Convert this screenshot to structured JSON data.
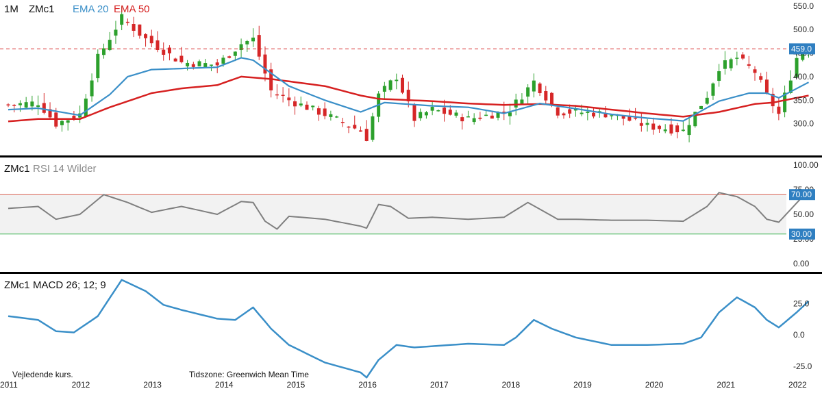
{
  "header": {
    "interval": "1M",
    "symbol": "ZMc1",
    "ema20_label": "EMA 20",
    "ema50_label": "EMA 50"
  },
  "colors": {
    "up": "#2ca02c",
    "down": "#d62728",
    "ema20": "#3a8fc8",
    "ema50": "#d62020",
    "rsi_line": "#7f7f7f",
    "rsi_band": "#f2f2f2",
    "rsi_upper_line": "#d65a4a",
    "rsi_lower_line": "#37b24d",
    "macd_line": "#3a8fc8",
    "tag_bg": "#2f7fc1",
    "tag_text": "#ffffff",
    "divider": "#000000"
  },
  "footer": {
    "note": "Vejledende kurs.",
    "timezone": "Tidszone: Greenwich Mean Time"
  },
  "chart_data": [
    {
      "type": "candlestick",
      "title": "ZMc1",
      "x_start": "2011-01",
      "x_end": "2022-03",
      "ylim": [
        240,
        570
      ],
      "yticks": [
        "550.0",
        "500.0",
        "450.0",
        "400.0",
        "350.0",
        "300.0"
      ],
      "ytick_values": [
        550,
        500,
        450,
        400,
        350,
        300
      ],
      "last_price": 459,
      "last_price_label": "459.0",
      "xticks": [
        "2011",
        "2012",
        "2013",
        "2014",
        "2015",
        "2016",
        "2017",
        "2018",
        "2019",
        "2020",
        "2021",
        "2022"
      ],
      "keypoints": [
        [
          "2011-01",
          340
        ],
        [
          "2011-06",
          345
        ],
        [
          "2011-09",
          300
        ],
        [
          "2012-01",
          320
        ],
        [
          "2012-04",
          440
        ],
        [
          "2012-08",
          525
        ],
        [
          "2012-12",
          480
        ],
        [
          "2013-06",
          430
        ],
        [
          "2013-12",
          425
        ],
        [
          "2014-04",
          470
        ],
        [
          "2014-06",
          480
        ],
        [
          "2014-09",
          370
        ],
        [
          "2014-12",
          350
        ],
        [
          "2015-06",
          320
        ],
        [
          "2015-12",
          285
        ],
        [
          "2016-01",
          270
        ],
        [
          "2016-03",
          360
        ],
        [
          "2016-06",
          400
        ],
        [
          "2016-09",
          310
        ],
        [
          "2016-12",
          330
        ],
        [
          "2017-06",
          310
        ],
        [
          "2017-12",
          325
        ],
        [
          "2018-01",
          330
        ],
        [
          "2018-05",
          390
        ],
        [
          "2018-09",
          325
        ],
        [
          "2018-12",
          325
        ],
        [
          "2019-06",
          320
        ],
        [
          "2019-12",
          295
        ],
        [
          "2020-06",
          285
        ],
        [
          "2020-10",
          360
        ],
        [
          "2020-12",
          420
        ],
        [
          "2021-03",
          440
        ],
        [
          "2021-06",
          410
        ],
        [
          "2021-08",
          360
        ],
        [
          "2021-10",
          320
        ],
        [
          "2022-01",
          440
        ],
        [
          "2022-02",
          455
        ],
        [
          "2022-03",
          459
        ]
      ],
      "ema20_points": [
        [
          "2011-01",
          330
        ],
        [
          "2011-06",
          333
        ],
        [
          "2012-01",
          318
        ],
        [
          "2012-06",
          362
        ],
        [
          "2012-09",
          400
        ],
        [
          "2013-01",
          415
        ],
        [
          "2013-12",
          420
        ],
        [
          "2014-04",
          440
        ],
        [
          "2014-06",
          435
        ],
        [
          "2014-12",
          380
        ],
        [
          "2015-06",
          350
        ],
        [
          "2015-12",
          325
        ],
        [
          "2016-04",
          345
        ],
        [
          "2016-12",
          338
        ],
        [
          "2017-06",
          335
        ],
        [
          "2017-12",
          322
        ],
        [
          "2018-06",
          343
        ],
        [
          "2018-12",
          332
        ],
        [
          "2019-06",
          320
        ],
        [
          "2019-12",
          312
        ],
        [
          "2020-06",
          306
        ],
        [
          "2020-12",
          348
        ],
        [
          "2021-05",
          365
        ],
        [
          "2021-08",
          365
        ],
        [
          "2021-10",
          355
        ],
        [
          "2022-03",
          388
        ]
      ],
      "ema50_points": [
        [
          "2011-01",
          305
        ],
        [
          "2011-06",
          310
        ],
        [
          "2012-01",
          310
        ],
        [
          "2012-06",
          335
        ],
        [
          "2013-01",
          365
        ],
        [
          "2013-06",
          375
        ],
        [
          "2013-12",
          382
        ],
        [
          "2014-04",
          400
        ],
        [
          "2014-09",
          395
        ],
        [
          "2015-06",
          380
        ],
        [
          "2015-12",
          360
        ],
        [
          "2016-03",
          353
        ],
        [
          "2016-12",
          348
        ],
        [
          "2017-06",
          343
        ],
        [
          "2017-12",
          340
        ],
        [
          "2018-06",
          342
        ],
        [
          "2018-12",
          338
        ],
        [
          "2019-06",
          330
        ],
        [
          "2019-12",
          322
        ],
        [
          "2020-06",
          315
        ],
        [
          "2020-12",
          325
        ],
        [
          "2021-06",
          342
        ],
        [
          "2021-09",
          345
        ],
        [
          "2022-03",
          360
        ]
      ]
    },
    {
      "type": "line",
      "title": "RSI 14 Wilder",
      "symbol": "ZMc1",
      "label": "RSI 14 Wilder",
      "ylim": [
        0,
        100
      ],
      "yticks": [
        "100.00",
        "75.00",
        "50.00",
        "25.00",
        "0.00"
      ],
      "ytick_values": [
        100,
        75,
        50,
        25,
        0
      ],
      "upper_level": 70,
      "lower_level": 30,
      "upper_label": "70.00",
      "lower_label": "30.00",
      "points": [
        [
          "2011-01",
          56
        ],
        [
          "2011-06",
          58
        ],
        [
          "2011-09",
          45
        ],
        [
          "2012-01",
          50
        ],
        [
          "2012-05",
          70
        ],
        [
          "2012-09",
          62
        ],
        [
          "2013-01",
          52
        ],
        [
          "2013-06",
          58
        ],
        [
          "2013-12",
          50
        ],
        [
          "2014-04",
          63
        ],
        [
          "2014-06",
          62
        ],
        [
          "2014-08",
          43
        ],
        [
          "2014-10",
          35
        ],
        [
          "2014-12",
          48
        ],
        [
          "2015-06",
          45
        ],
        [
          "2015-12",
          38
        ],
        [
          "2016-01",
          36
        ],
        [
          "2016-03",
          60
        ],
        [
          "2016-05",
          58
        ],
        [
          "2016-08",
          46
        ],
        [
          "2016-12",
          47
        ],
        [
          "2017-06",
          45
        ],
        [
          "2017-12",
          47
        ],
        [
          "2018-04",
          62
        ],
        [
          "2018-09",
          45
        ],
        [
          "2018-12",
          45
        ],
        [
          "2019-06",
          44
        ],
        [
          "2019-12",
          44
        ],
        [
          "2020-06",
          43
        ],
        [
          "2020-10",
          58
        ],
        [
          "2020-12",
          72
        ],
        [
          "2021-03",
          68
        ],
        [
          "2021-06",
          58
        ],
        [
          "2021-08",
          45
        ],
        [
          "2021-10",
          42
        ],
        [
          "2021-12",
          55
        ],
        [
          "2022-02",
          68
        ],
        [
          "2022-03",
          67
        ]
      ]
    },
    {
      "type": "line",
      "title": "MACD 26; 12; 9",
      "symbol": "ZMc1",
      "label": "MACD 26; 12; 9",
      "ylim": [
        -36,
        46
      ],
      "yticks": [
        "25.0",
        "0.0",
        "-25.0"
      ],
      "ytick_values": [
        25,
        0,
        -25
      ],
      "points": [
        [
          "2011-01",
          15
        ],
        [
          "2011-06",
          12
        ],
        [
          "2011-09",
          3
        ],
        [
          "2011-12",
          2
        ],
        [
          "2012-04",
          15
        ],
        [
          "2012-08",
          44
        ],
        [
          "2012-12",
          35
        ],
        [
          "2013-03",
          24
        ],
        [
          "2013-06",
          20
        ],
        [
          "2013-12",
          13
        ],
        [
          "2014-03",
          12
        ],
        [
          "2014-06",
          22
        ],
        [
          "2014-09",
          5
        ],
        [
          "2014-12",
          -8
        ],
        [
          "2015-06",
          -22
        ],
        [
          "2015-12",
          -30
        ],
        [
          "2016-01",
          -34
        ],
        [
          "2016-03",
          -20
        ],
        [
          "2016-06",
          -8
        ],
        [
          "2016-09",
          -10
        ],
        [
          "2016-12",
          -9
        ],
        [
          "2017-06",
          -7
        ],
        [
          "2017-12",
          -8
        ],
        [
          "2018-02",
          -2
        ],
        [
          "2018-05",
          12
        ],
        [
          "2018-08",
          5
        ],
        [
          "2018-12",
          -2
        ],
        [
          "2019-06",
          -8
        ],
        [
          "2019-12",
          -8
        ],
        [
          "2020-06",
          -7
        ],
        [
          "2020-09",
          -2
        ],
        [
          "2020-12",
          18
        ],
        [
          "2021-03",
          30
        ],
        [
          "2021-06",
          22
        ],
        [
          "2021-08",
          12
        ],
        [
          "2021-10",
          6
        ],
        [
          "2022-01",
          18
        ],
        [
          "2022-03",
          27
        ]
      ]
    }
  ]
}
